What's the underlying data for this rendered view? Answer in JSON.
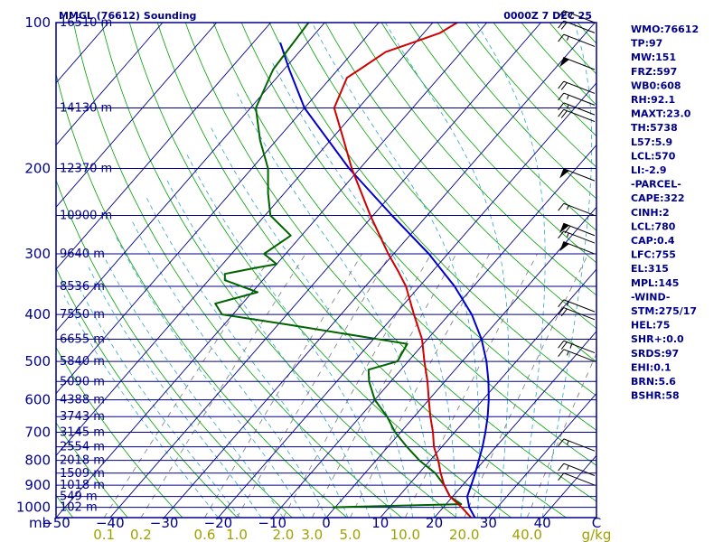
{
  "header": {
    "title": "MMGL (76612) Sounding",
    "valid_time": "0000Z  7 DEC 25"
  },
  "side_panel": [
    "WMO:76612",
    "TP:97",
    "MW:151",
    "FRZ:597",
    "WB0:608",
    "RH:92.1",
    "MAXT:23.0",
    "TH:5738",
    "L57:5.9",
    "LCL:570",
    "LI:-2.9",
    "-PARCEL-",
    "CAPE:322",
    "CINH:2",
    "LCL:780",
    "CAP:0.4",
    "LFC:755",
    "EL:315",
    "MPL:145",
    "-WIND-",
    "STM:275/17",
    "HEL:75",
    "SHR+:0.0",
    "SRDS:97",
    "EHI:0.1",
    "BRN:5.6",
    "BSHR:58"
  ],
  "colors": {
    "isobar": "#00008b",
    "isotherm": "#00008b",
    "dry_adiabat": "#00a000",
    "moist_adiabat": "#2fa6c6",
    "mixing_ratio": "#7a7a7a",
    "temperature": "#d00000",
    "dewpoint": "#006400",
    "parcel": "#0000cd",
    "text": "#00008b",
    "mixing_label": "#a0a000"
  },
  "chart_data": {
    "type": "skew-t",
    "pressure_unit": "mb",
    "temperature_unit": "C",
    "mixing_ratio_unit": "g/kg",
    "x_unit_label": "mb",
    "mixing_unit_label": "g/kg",
    "pressure_levels": [
      100,
      200,
      300,
      400,
      500,
      600,
      700,
      800,
      900,
      1000
    ],
    "pressure_labels": [
      "100",
      "200",
      "300",
      "400",
      "500",
      "600",
      "700",
      "800",
      "900",
      "1000"
    ],
    "height_labels": [
      {
        "p": 100,
        "text": "16510 m"
      },
      {
        "p": 150,
        "text": "14130 m"
      },
      {
        "p": 200,
        "text": "12370 m"
      },
      {
        "p": 250,
        "text": "10900 m"
      },
      {
        "p": 300,
        "text": "9640 m"
      },
      {
        "p": 350,
        "text": "8536 m"
      },
      {
        "p": 400,
        "text": "7550 m"
      },
      {
        "p": 450,
        "text": "6655 m"
      },
      {
        "p": 500,
        "text": "5840 m"
      },
      {
        "p": 550,
        "text": "5090 m"
      },
      {
        "p": 600,
        "text": "4388 m"
      },
      {
        "p": 650,
        "text": "3743 m"
      },
      {
        "p": 700,
        "text": "3145 m"
      },
      {
        "p": 750,
        "text": "2554 m"
      },
      {
        "p": 800,
        "text": "2018 m"
      },
      {
        "p": 850,
        "text": "1509 m"
      },
      {
        "p": 900,
        "text": "1018 m"
      },
      {
        "p": 950,
        "text": "549 m"
      },
      {
        "p": 1000,
        "text": "102 m"
      }
    ],
    "temperature_ticks": [
      -50,
      -40,
      -30,
      -20,
      -10,
      0,
      10,
      20,
      30,
      40,
      50
    ],
    "temperature_tick_labels": [
      "−50",
      "−40",
      "−30",
      "−20",
      "−10",
      "0",
      "10",
      "20",
      "30",
      "40",
      "C"
    ],
    "mixing_ratio_lines": [
      0.1,
      0.2,
      0.6,
      1.0,
      2.0,
      3.0,
      5.0,
      10.0,
      20.0,
      40.0
    ],
    "mixing_ratio_labels": [
      "0.1",
      "0.2",
      "0.6",
      "1.0",
      "2.0",
      "3.0",
      "5.0",
      "10.0",
      "20.0",
      "40.0"
    ],
    "x_range_at_1050mb": [
      -50,
      50
    ],
    "p_range": [
      100,
      1050
    ],
    "temperature_profile": [
      {
        "p": 1050,
        "t": 26.8
      },
      {
        "p": 1000,
        "t": 23.4
      },
      {
        "p": 950,
        "t": 19.5
      },
      {
        "p": 900,
        "t": 16.6
      },
      {
        "p": 850,
        "t": 14.0
      },
      {
        "p": 800,
        "t": 11.5
      },
      {
        "p": 750,
        "t": 8.5
      },
      {
        "p": 700,
        "t": 6.0
      },
      {
        "p": 650,
        "t": 3.0
      },
      {
        "p": 600,
        "t": 0.0
      },
      {
        "p": 550,
        "t": -3.2
      },
      {
        "p": 500,
        "t": -7.0
      },
      {
        "p": 450,
        "t": -11.0
      },
      {
        "p": 400,
        "t": -16.5
      },
      {
        "p": 350,
        "t": -22.5
      },
      {
        "p": 325,
        "t": -26.5
      },
      {
        "p": 300,
        "t": -31.0
      },
      {
        "p": 250,
        "t": -40.5
      },
      {
        "p": 200,
        "t": -51.5
      },
      {
        "p": 175,
        "t": -57.5
      },
      {
        "p": 150,
        "t": -64.5
      },
      {
        "p": 130,
        "t": -67.0
      },
      {
        "p": 125,
        "t": -66.0
      },
      {
        "p": 115,
        "t": -64.0
      },
      {
        "p": 110,
        "t": -60.5
      },
      {
        "p": 105,
        "t": -57.0
      },
      {
        "p": 100,
        "t": -55.5
      }
    ],
    "dewpoint_profile": [
      {
        "p": 1000,
        "t": -0.5
      },
      {
        "p": 985,
        "t": 22.8
      },
      {
        "p": 950,
        "t": 19.5
      },
      {
        "p": 900,
        "t": 16.6
      },
      {
        "p": 850,
        "t": 13.0
      },
      {
        "p": 800,
        "t": 8.0
      },
      {
        "p": 750,
        "t": 3.5
      },
      {
        "p": 700,
        "t": -1.0
      },
      {
        "p": 650,
        "t": -5.0
      },
      {
        "p": 600,
        "t": -10.0
      },
      {
        "p": 550,
        "t": -14.0
      },
      {
        "p": 520,
        "t": -16.0
      },
      {
        "p": 500,
        "t": -12.0
      },
      {
        "p": 460,
        "t": -13.0
      },
      {
        "p": 420,
        "t": -38.0
      },
      {
        "p": 400,
        "t": -52.0
      },
      {
        "p": 380,
        "t": -55.0
      },
      {
        "p": 360,
        "t": -49.0
      },
      {
        "p": 340,
        "t": -57.0
      },
      {
        "p": 330,
        "t": -58.0
      },
      {
        "p": 320,
        "t": -53.0
      },
      {
        "p": 315,
        "t": -50.0
      },
      {
        "p": 300,
        "t": -54.0
      },
      {
        "p": 275,
        "t": -52.0
      },
      {
        "p": 250,
        "t": -59.0
      },
      {
        "p": 225,
        "t": -63.0
      },
      {
        "p": 200,
        "t": -67.0
      },
      {
        "p": 175,
        "t": -73.0
      },
      {
        "p": 150,
        "t": -79.0
      },
      {
        "p": 125,
        "t": -82.0
      },
      {
        "p": 100,
        "t": -83.0
      }
    ],
    "parcel_profile": [
      {
        "p": 1050,
        "t": 27.5
      },
      {
        "p": 1000,
        "t": 24.8
      },
      {
        "p": 950,
        "t": 22.7
      },
      {
        "p": 900,
        "t": 21.6
      },
      {
        "p": 850,
        "t": 20.4
      },
      {
        "p": 800,
        "t": 19.0
      },
      {
        "p": 750,
        "t": 17.5
      },
      {
        "p": 700,
        "t": 15.7
      },
      {
        "p": 650,
        "t": 13.6
      },
      {
        "p": 600,
        "t": 11.1
      },
      {
        "p": 550,
        "t": 8.1
      },
      {
        "p": 500,
        "t": 4.5
      },
      {
        "p": 450,
        "t": 0.0
      },
      {
        "p": 400,
        "t": -5.8
      },
      {
        "p": 350,
        "t": -13.5
      },
      {
        "p": 300,
        "t": -23.5
      },
      {
        "p": 250,
        "t": -36.5
      },
      {
        "p": 200,
        "t": -52.0
      },
      {
        "p": 150,
        "t": -70.0
      },
      {
        "p": 125,
        "t": -79.0
      },
      {
        "p": 110,
        "t": -85.0
      }
    ],
    "wind_barbs": [
      {
        "p": 100,
        "spd": 25
      },
      {
        "p": 105,
        "spd": 20
      },
      {
        "p": 112,
        "spd": 15
      },
      {
        "p": 125,
        "spd": 50
      },
      {
        "p": 140,
        "spd": 20
      },
      {
        "p": 148,
        "spd": 15
      },
      {
        "p": 155,
        "spd": 15
      },
      {
        "p": 160,
        "spd": 20
      },
      {
        "p": 212,
        "spd": 50
      },
      {
        "p": 250,
        "spd": 15
      },
      {
        "p": 275,
        "spd": 60
      },
      {
        "p": 285,
        "spd": 15
      },
      {
        "p": 300,
        "spd": 50
      },
      {
        "p": 395,
        "spd": 15
      },
      {
        "p": 410,
        "spd": 20
      },
      {
        "p": 480,
        "spd": 25
      },
      {
        "p": 500,
        "spd": 15
      },
      {
        "p": 765,
        "spd": 15
      },
      {
        "p": 860,
        "spd": 15
      },
      {
        "p": 900,
        "spd": 10
      }
    ]
  }
}
